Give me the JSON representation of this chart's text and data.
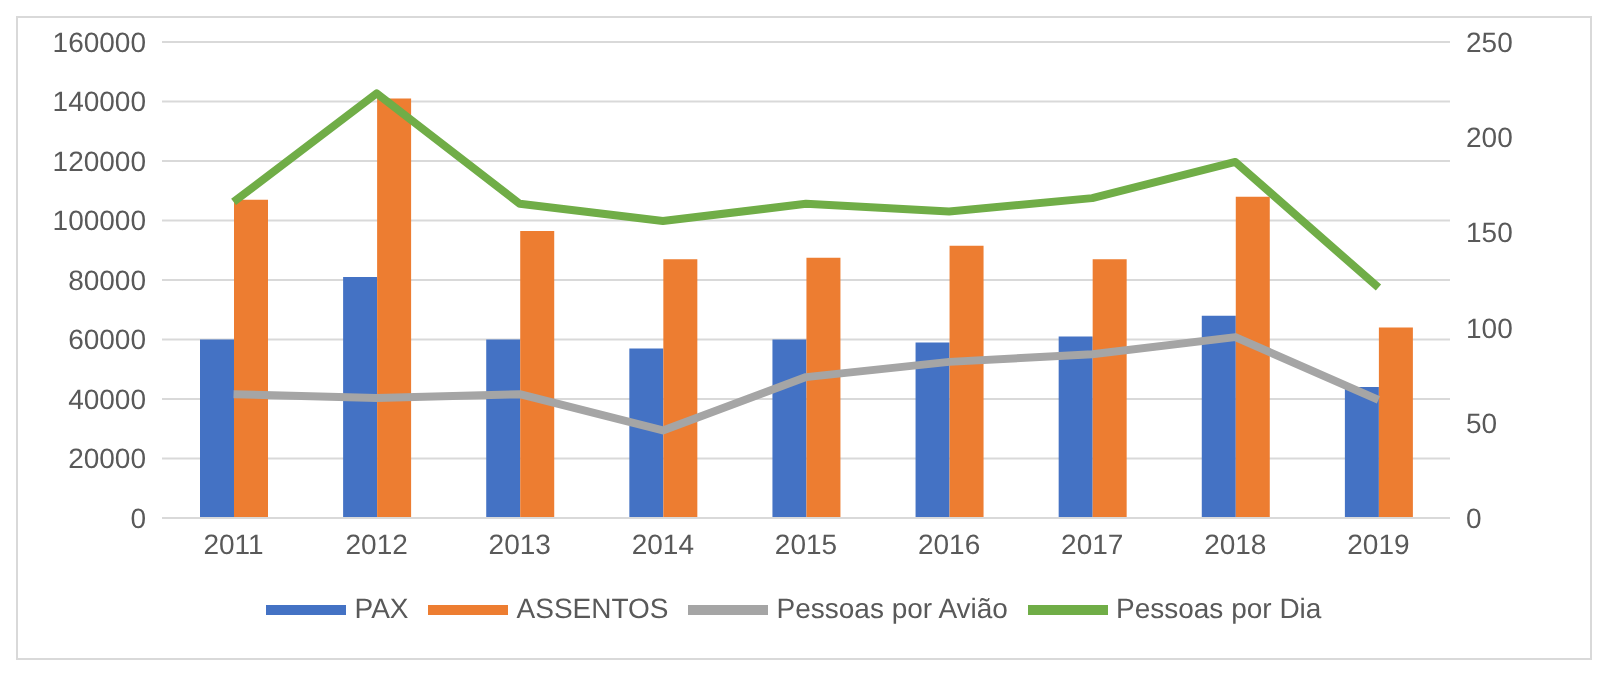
{
  "chart_data": {
    "type": "bar",
    "categories": [
      "2011",
      "2012",
      "2013",
      "2014",
      "2015",
      "2016",
      "2017",
      "2018",
      "2019"
    ],
    "series": [
      {
        "name": "PAX",
        "color": "#4472c4",
        "values": [
          60000,
          81000,
          60000,
          57000,
          60000,
          59000,
          61000,
          68000,
          44000
        ]
      },
      {
        "name": "ASSENTOS",
        "color": "#ed7d31",
        "values": [
          107000,
          141000,
          96500,
          87000,
          87500,
          91500,
          87000,
          108000,
          64000
        ]
      },
      {
        "name": "Pessoas por Avião",
        "type": "line",
        "axis": "y2",
        "color": "#a5a5a5",
        "values": [
          65,
          63,
          65,
          46,
          74,
          82,
          86,
          95,
          62
        ]
      },
      {
        "name": "Pessoas por Dia",
        "type": "line",
        "axis": "y2",
        "color": "#70ad47",
        "values": [
          166,
          223,
          165,
          156,
          165,
          161,
          168,
          187,
          121
        ]
      }
    ],
    "ylim": [
      0,
      160000
    ],
    "yticks": [
      0,
      20000,
      40000,
      60000,
      80000,
      100000,
      120000,
      140000,
      160000
    ],
    "y2lim": [
      0,
      250
    ],
    "y2ticks": [
      0,
      50,
      100,
      150,
      200,
      250
    ],
    "grid": "y",
    "legend": "bottom",
    "marker": "none"
  }
}
